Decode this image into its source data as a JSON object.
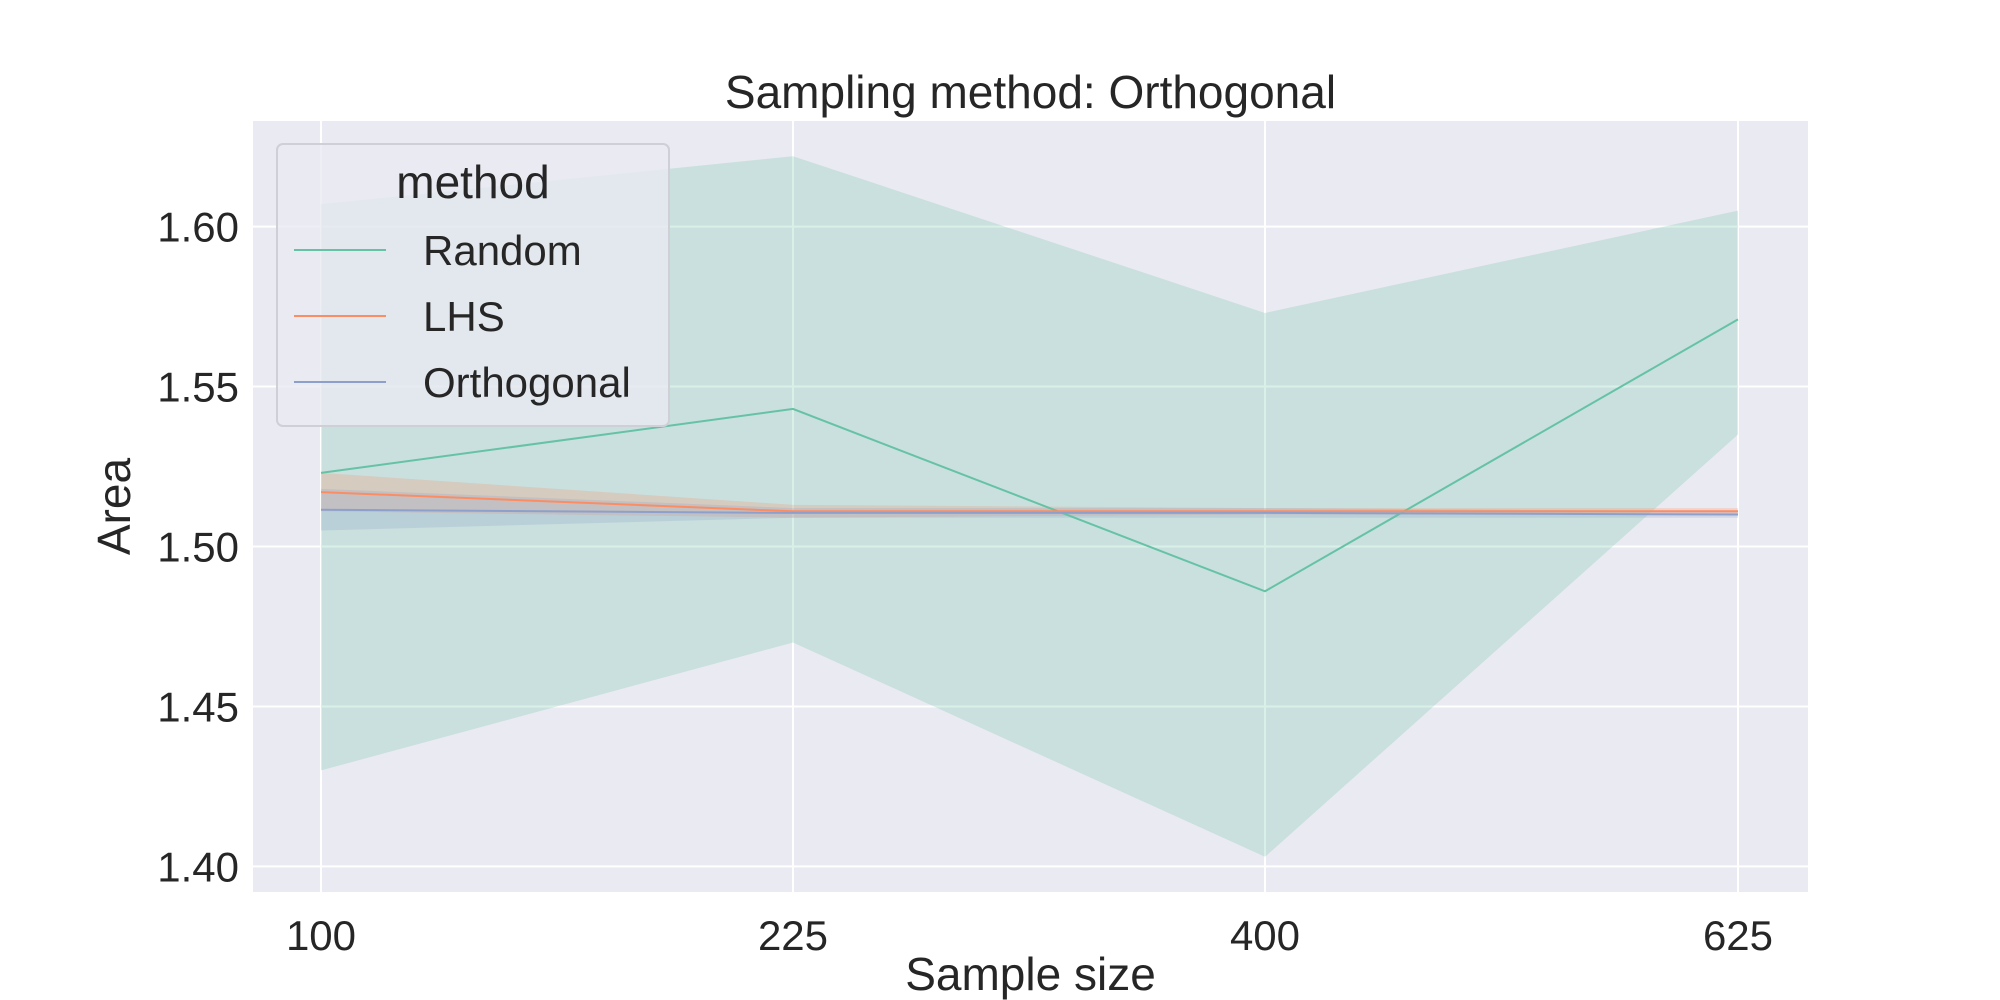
{
  "chart_data": {
    "type": "line",
    "title": "Sampling method: Orthogonal",
    "xlabel": "Sample size",
    "ylabel": "Area",
    "x": [
      100,
      225,
      400,
      625
    ],
    "x_tick_labels": [
      "100",
      "225",
      "400",
      "625"
    ],
    "ylim": [
      1.392,
      1.633
    ],
    "y_ticks": [
      1.4,
      1.45,
      1.5,
      1.55,
      1.6
    ],
    "y_tick_labels": [
      "1.40",
      "1.45",
      "1.50",
      "1.55",
      "1.60"
    ],
    "grid": true,
    "legend": {
      "title": "method",
      "placement": "upper-left"
    },
    "series": [
      {
        "name": "Random",
        "color": "#66c2a5",
        "values": [
          1.523,
          1.543,
          1.486,
          1.571
        ],
        "ci_lower": [
          1.43,
          1.47,
          1.403,
          1.535
        ],
        "ci_upper": [
          1.607,
          1.622,
          1.573,
          1.605
        ]
      },
      {
        "name": "LHS",
        "color": "#fc8d62",
        "values": [
          1.517,
          1.511,
          1.511,
          1.511
        ],
        "ci_lower": [
          1.511,
          1.509,
          1.51,
          1.51
        ],
        "ci_upper": [
          1.523,
          1.513,
          1.512,
          1.512
        ]
      },
      {
        "name": "Orthogonal",
        "color": "#8da0cb",
        "values": [
          1.5115,
          1.5105,
          1.5105,
          1.51
        ],
        "ci_lower": [
          1.505,
          1.509,
          1.509,
          1.509
        ],
        "ci_upper": [
          1.518,
          1.512,
          1.512,
          1.511
        ]
      }
    ]
  }
}
